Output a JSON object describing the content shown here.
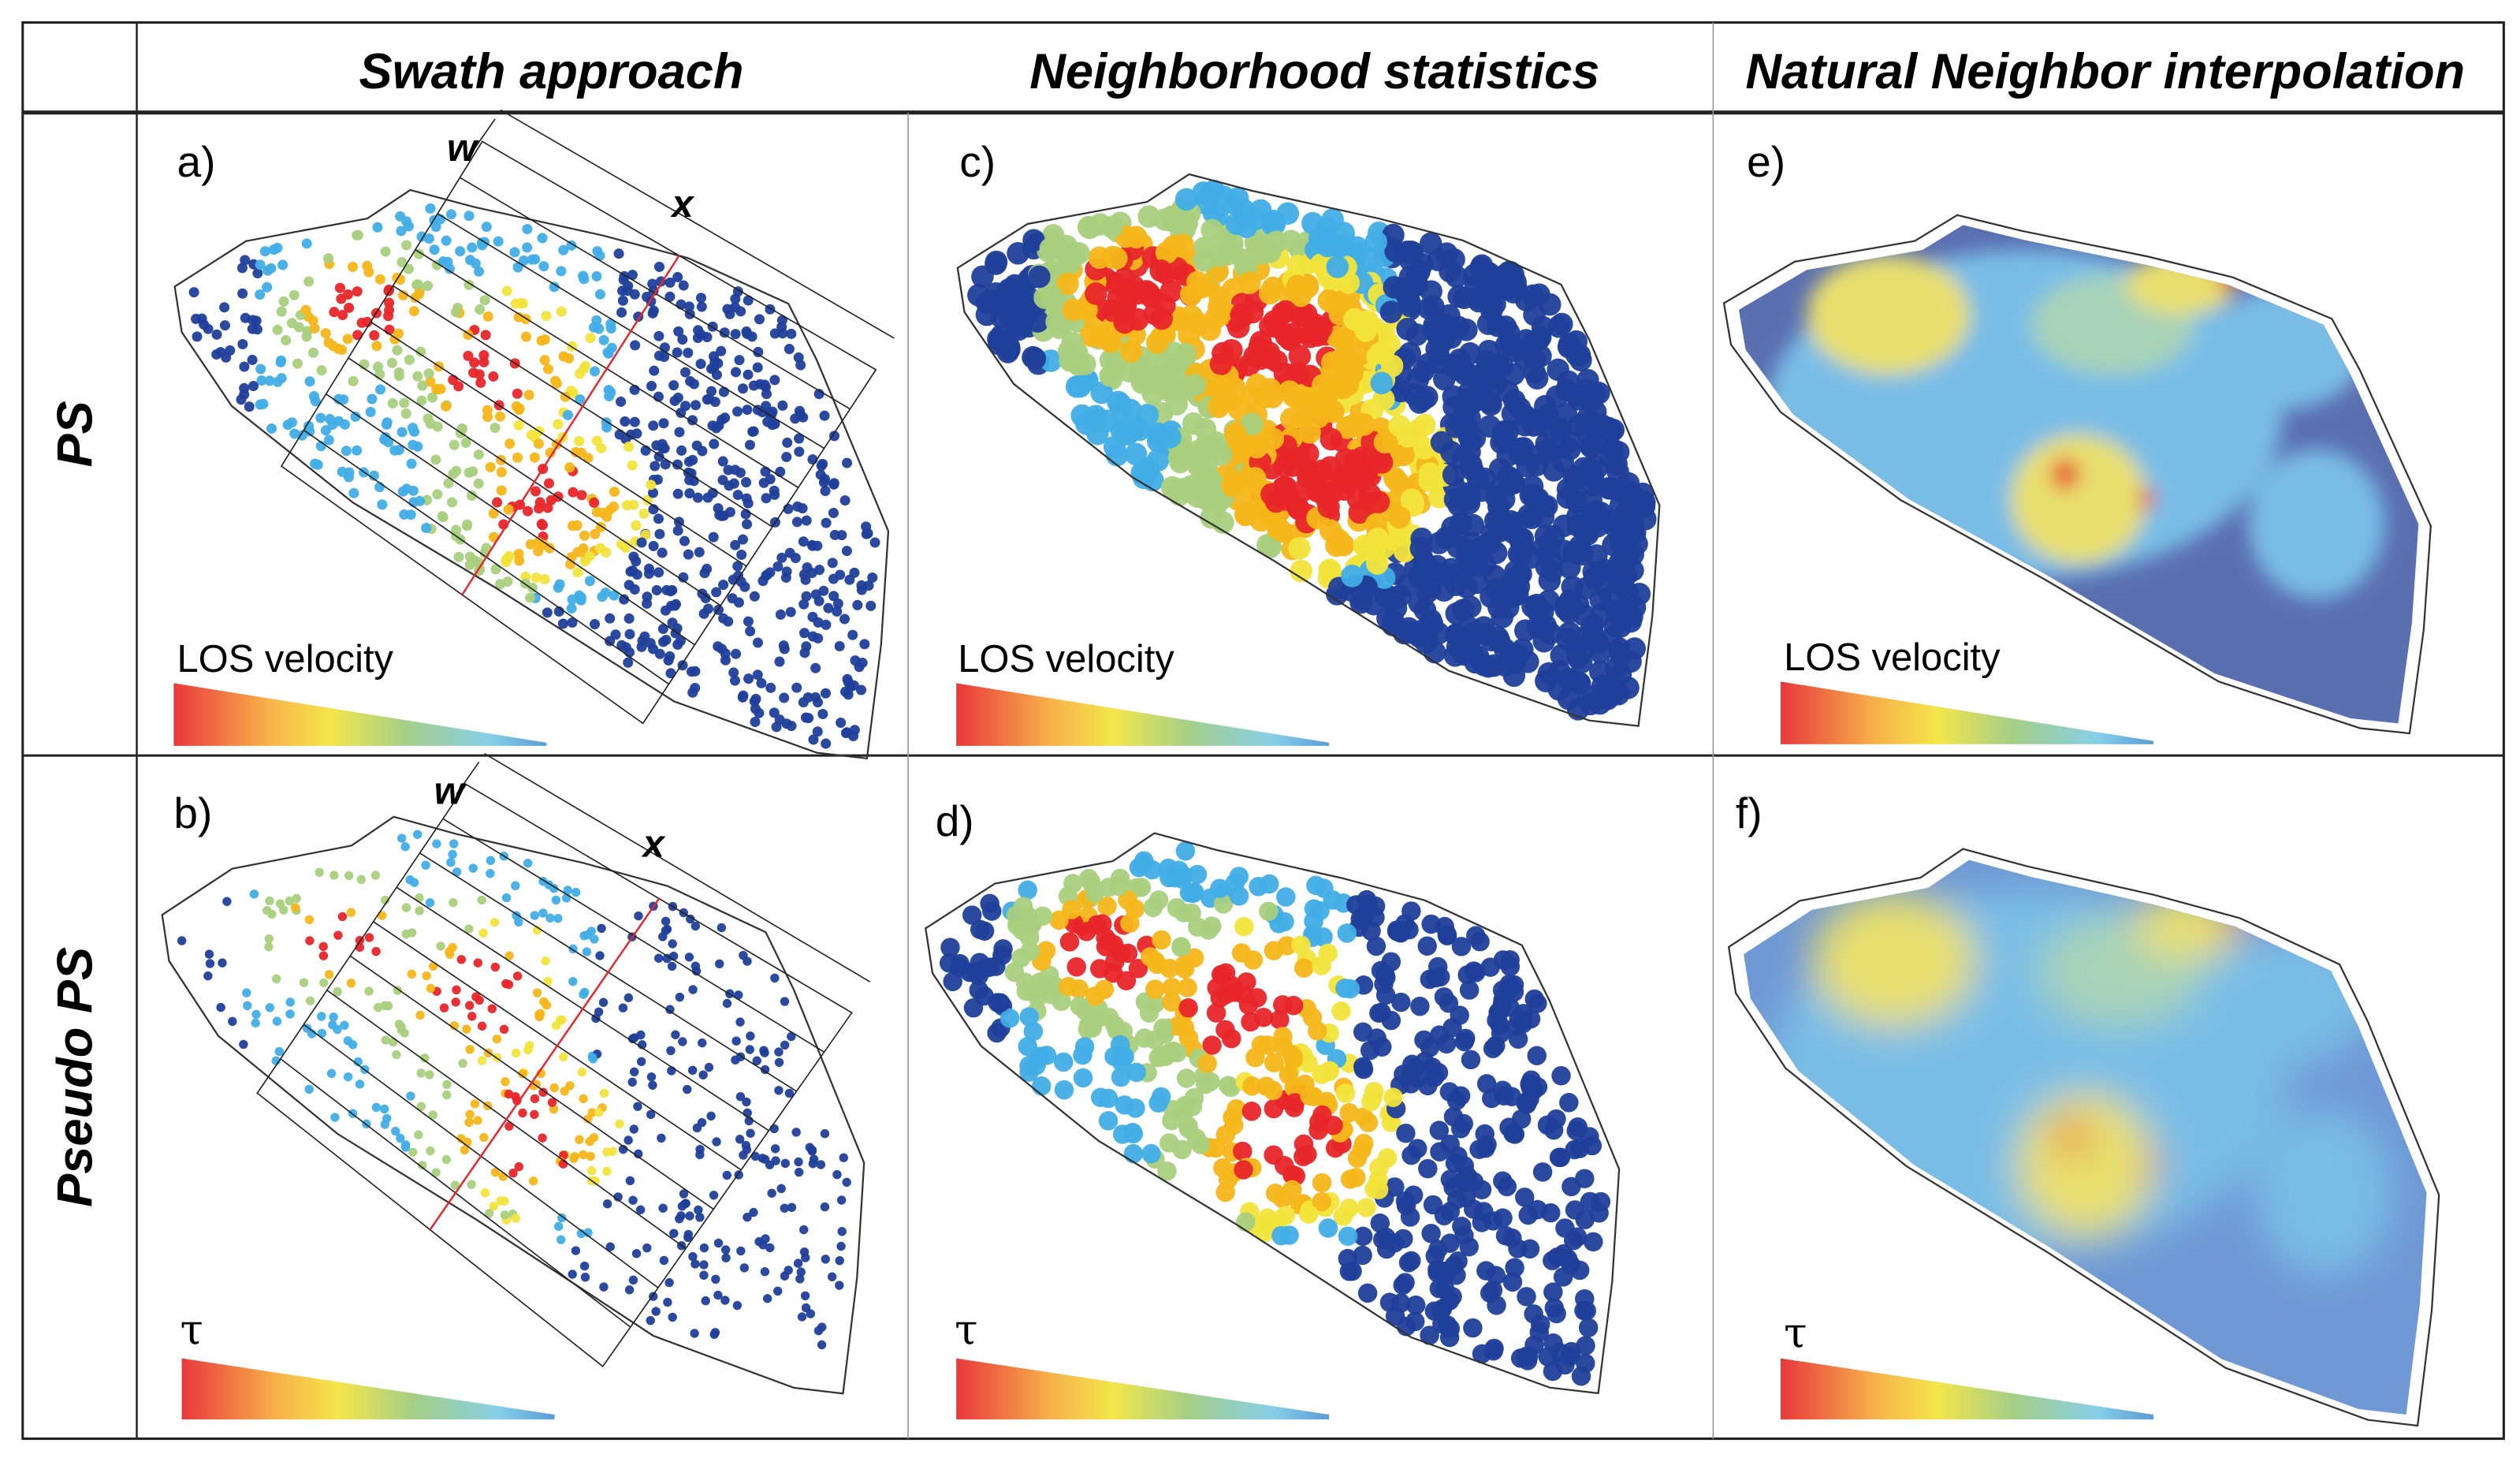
{
  "figure": {
    "column_headers": [
      "Swath approach",
      "Neighborhood statistics",
      "Natural Neighbor interpolation"
    ],
    "row_labels": [
      "PS",
      "Pseudo PS"
    ],
    "panels": {
      "a": {
        "label": "a)",
        "legend": "LOS velocity",
        "width_mark": "w",
        "length_mark": "x"
      },
      "b": {
        "label": "b)",
        "legend": "τ",
        "width_mark": "w",
        "length_mark": "x"
      },
      "c": {
        "label": "c)",
        "legend": "LOS velocity"
      },
      "d": {
        "label": "d)",
        "legend": "τ"
      },
      "e": {
        "label": "e)",
        "legend": "LOS velocity"
      },
      "f": {
        "label": "f)",
        "legend": "τ"
      }
    },
    "colors": {
      "red": "#e8262a",
      "orange": "#f6b61a",
      "yellow": "#f2e43c",
      "green": "#a9cf7e",
      "light_blue": "#41ade6",
      "dark_blue": "#1f3f9a",
      "interp_dark": "#5a6fb0",
      "interp_mid": "#79bde6"
    }
  }
}
